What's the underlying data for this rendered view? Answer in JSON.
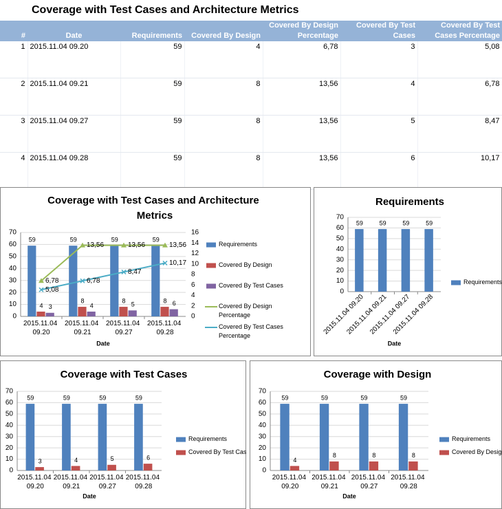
{
  "title": "Coverage with Test Cases and Architecture Metrics",
  "table": {
    "columns": [
      "#",
      "Date",
      "Requirements",
      "Covered By Design",
      "Covered By Design Percentage",
      "Covered By Test Cases",
      "Covered By Test Cases Percentage"
    ],
    "rows": [
      [
        "1",
        "2015.11.04 09.20",
        "59",
        "4",
        "6,78",
        "3",
        "5,08"
      ],
      [
        "2",
        "2015.11.04 09.21",
        "59",
        "8",
        "13,56",
        "4",
        "6,78"
      ],
      [
        "3",
        "2015.11.04 09.27",
        "59",
        "8",
        "13,56",
        "5",
        "8,47"
      ],
      [
        "4",
        "2015.11.04 09.28",
        "59",
        "8",
        "13,56",
        "6",
        "10,17"
      ]
    ]
  },
  "chart_data": [
    {
      "type": "bar",
      "title": "Coverage with Test Cases and Architecture Metrics",
      "xlabel": "Date",
      "categories": [
        "2015.11.04 09.20",
        "2015.11.04 09.21",
        "2015.11.04 09.27",
        "2015.11.04 09.28"
      ],
      "series": [
        {
          "name": "Requirements",
          "color": "#4f81bd",
          "values": [
            59,
            59,
            59,
            59
          ]
        },
        {
          "name": "Covered By Design",
          "color": "#c0504d",
          "values": [
            4,
            8,
            8,
            8
          ]
        },
        {
          "name": "Covered By Test Cases",
          "color": "#8064a2",
          "values": [
            3,
            4,
            5,
            6
          ]
        },
        {
          "name": "Covered By Design Percentage",
          "color": "#9bbb59",
          "type": "line",
          "axis": "y2",
          "marker": "triangle",
          "values": [
            6.78,
            13.56,
            13.56,
            13.56
          ],
          "value_labels": [
            "6,78",
            "13,56",
            "13,56",
            "13,56"
          ]
        },
        {
          "name": "Covered By Test Cases Percentage",
          "color": "#4bacc6",
          "type": "line",
          "axis": "y2",
          "marker": "cross",
          "values": [
            5.08,
            6.78,
            8.47,
            10.17
          ],
          "value_labels": [
            "5,08",
            "6,78",
            "8,47",
            "10,17"
          ]
        }
      ],
      "ylim": [
        0,
        70
      ],
      "yticks": [
        0,
        10,
        20,
        30,
        40,
        50,
        60,
        70
      ],
      "y2lim": [
        0,
        16
      ],
      "y2ticks": [
        0,
        2,
        4,
        6,
        8,
        10,
        12,
        14,
        16
      ],
      "grid": true,
      "legend": "right"
    },
    {
      "type": "bar",
      "title": "Requirements",
      "xlabel": "Date",
      "categories": [
        "2015.11.04 09.20",
        "2015.11.04 09.21",
        "2015.11.04 09.27",
        "2015.11.04 09.28"
      ],
      "series": [
        {
          "name": "Requirements",
          "color": "#4f81bd",
          "values": [
            59,
            59,
            59,
            59
          ]
        }
      ],
      "ylim": [
        0,
        70
      ],
      "yticks": [
        0,
        10,
        20,
        30,
        40,
        50,
        60,
        70
      ],
      "grid": true,
      "legend": "right"
    },
    {
      "type": "bar",
      "title": "Coverage with Test Cases",
      "xlabel": "Date",
      "categories": [
        "2015.11.04 09.20",
        "2015.11.04 09.21",
        "2015.11.04 09.27",
        "2015.11.04 09.28"
      ],
      "series": [
        {
          "name": "Requirements",
          "color": "#4f81bd",
          "values": [
            59,
            59,
            59,
            59
          ]
        },
        {
          "name": "Covered By Test Cases",
          "color": "#c0504d",
          "values": [
            3,
            4,
            5,
            6
          ]
        }
      ],
      "ylim": [
        0,
        70
      ],
      "yticks": [
        0,
        10,
        20,
        30,
        40,
        50,
        60,
        70
      ],
      "grid": true,
      "legend": "right"
    },
    {
      "type": "bar",
      "title": "Coverage with Design",
      "xlabel": "Date",
      "categories": [
        "2015.11.04 09.20",
        "2015.11.04 09.21",
        "2015.11.04 09.27",
        "2015.11.04 09.28"
      ],
      "series": [
        {
          "name": "Requirements",
          "color": "#4f81bd",
          "values": [
            59,
            59,
            59,
            59
          ]
        },
        {
          "name": "Covered By Design",
          "color": "#c0504d",
          "values": [
            4,
            8,
            8,
            8
          ]
        }
      ],
      "ylim": [
        0,
        70
      ],
      "yticks": [
        0,
        10,
        20,
        30,
        40,
        50,
        60,
        70
      ],
      "grid": true,
      "legend": "right"
    }
  ]
}
